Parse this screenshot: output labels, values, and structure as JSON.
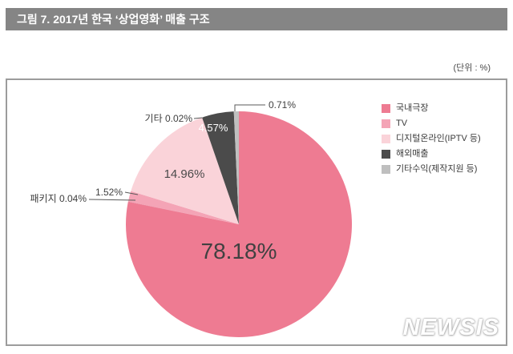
{
  "figure": {
    "title": "그림 7. 2017년 한국 ‘상업영화’ 매출 구조",
    "units_note": "(단위 : %)",
    "title_bar_color": "#858585",
    "box_border_color": "#9c9c9c"
  },
  "watermark": "NEWSIS",
  "chart_data": {
    "type": "pie",
    "title": "2017년 한국 상업영화 매출 구조",
    "unit": "%",
    "start_angle_deg": 0,
    "direction": "clockwise",
    "segments": [
      {
        "key": "domestic-theater",
        "name": "국내극장",
        "value": 78.18,
        "label": "78.18%",
        "color": "#ee7b92",
        "label_placement": "inside"
      },
      {
        "key": "package",
        "name": "패키지",
        "value": 0.04,
        "label": "패키지 0.04%",
        "color": "#e0607f",
        "label_placement": "outside"
      },
      {
        "key": "tv",
        "name": "TV",
        "value": 1.52,
        "label": "1.52%",
        "color": "#f4a4b6",
        "label_placement": "outside"
      },
      {
        "key": "digital-online",
        "name": "디지털온라인(IPTV 등)",
        "value": 14.96,
        "label": "14.96%",
        "color": "#fad3d9",
        "label_placement": "inside"
      },
      {
        "key": "etc",
        "name": "기타",
        "value": 0.02,
        "label": "기타 0.02%",
        "color": "#f8c9d1",
        "label_placement": "outside"
      },
      {
        "key": "overseas",
        "name": "해외매출",
        "value": 4.57,
        "label": "4.57%",
        "color": "#4b4b4b",
        "label_placement": "inside"
      },
      {
        "key": "other-income",
        "name": "기타수익(제작지원 등)",
        "value": 0.71,
        "label": "0.71%",
        "color": "#bfbfbf",
        "label_placement": "outside"
      }
    ],
    "legend": {
      "position": "right",
      "items": [
        {
          "label": "국내극장",
          "color": "#ee7b92"
        },
        {
          "label": "TV",
          "color": "#f4a4b6"
        },
        {
          "label": "디지털온라인(IPTV 등)",
          "color": "#fad3d9"
        },
        {
          "label": "해외매출",
          "color": "#4b4b4b"
        },
        {
          "label": "기타수익(제작지원 등)",
          "color": "#bfbfbf"
        }
      ]
    }
  }
}
